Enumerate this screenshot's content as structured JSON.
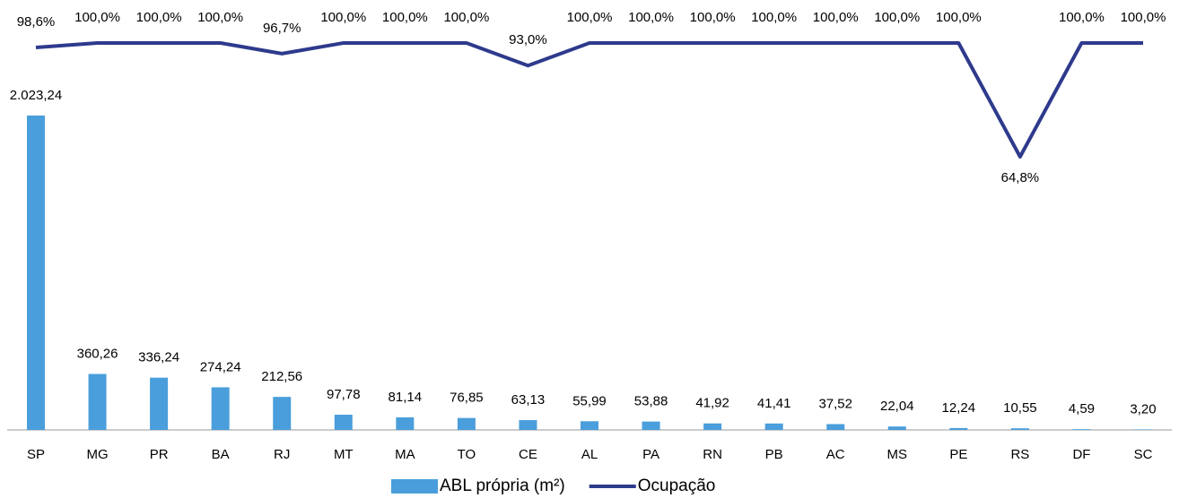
{
  "chart_data": {
    "type": "bar_line",
    "categories": [
      "SP",
      "MG",
      "PR",
      "BA",
      "RJ",
      "MT",
      "MA",
      "TO",
      "CE",
      "AL",
      "PA",
      "RN",
      "PB",
      "AC",
      "MS",
      "PE",
      "RS",
      "DF",
      "SC"
    ],
    "series": [
      {
        "name": "ABL própria (m²)",
        "type": "bar",
        "color": "#4a9edb",
        "values": [
          2023.24,
          360.26,
          336.24,
          274.24,
          212.56,
          97.78,
          81.14,
          76.85,
          63.13,
          55.99,
          53.88,
          41.92,
          41.41,
          37.52,
          22.04,
          12.24,
          10.55,
          4.59,
          3.2
        ],
        "value_labels": [
          "2.023,24",
          "360,26",
          "336,24",
          "274,24",
          "212,56",
          "97,78",
          "81,14",
          "76,85",
          "63,13",
          "55,99",
          "53,88",
          "41,92",
          "41,41",
          "37,52",
          "22,04",
          "12,24",
          "10,55",
          "4,59",
          "3,20"
        ]
      },
      {
        "name": "Ocupação",
        "type": "line",
        "axis": "y2",
        "color": "#2e3a8c",
        "values": [
          98.6,
          100,
          100,
          100,
          96.7,
          100,
          100,
          100,
          93.0,
          100,
          100,
          100,
          100,
          100,
          100,
          100,
          64.8,
          100,
          100
        ],
        "value_labels": [
          "98,6%",
          "100,0%",
          "100,0%",
          "100,0%",
          "96,7%",
          "100,0%",
          "100,0%",
          "100,0%",
          "93,0%",
          "100,0%",
          "100,0%",
          "100,0%",
          "100,0%",
          "100,0%",
          "100,0%",
          "100,0%",
          "64,8%",
          "100,0%",
          "100,0%"
        ]
      }
    ],
    "legend": "bottom"
  }
}
